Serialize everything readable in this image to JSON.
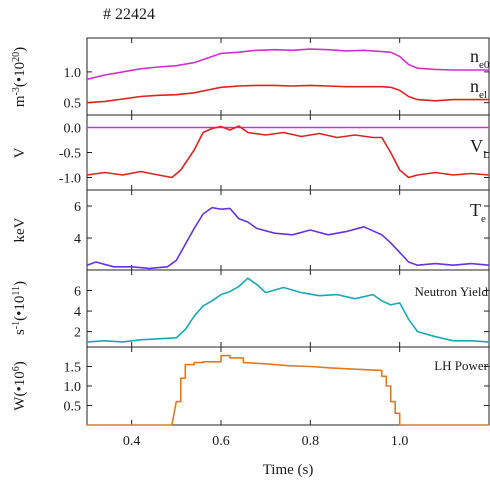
{
  "shot_label": "# 22424",
  "chart_data": {
    "type": "line",
    "xlabel": "Time (s)",
    "xlim": [
      0.3,
      1.2
    ],
    "xticks": [
      0.4,
      0.6,
      0.8,
      1.0
    ],
    "xtick_labels": [
      "0.4",
      "0.6",
      "0.8",
      "1.0"
    ],
    "panels": [
      {
        "id": "density",
        "ylabel": "m-3(•10²⁰)",
        "ylabel_parts": [
          "m",
          "-3",
          "(•10",
          "20",
          ")"
        ],
        "ylim": [
          0.3,
          1.55
        ],
        "yticks": [
          0.5,
          1.0
        ],
        "ytick_labels": [
          "0.5",
          "1.0"
        ],
        "series": [
          {
            "name": "ne0",
            "label_main": "n",
            "label_sub": "e0",
            "color": "#cc33cc",
            "x": [
              0.3,
              0.34,
              0.38,
              0.42,
              0.46,
              0.5,
              0.54,
              0.58,
              0.6,
              0.64,
              0.68,
              0.72,
              0.76,
              0.8,
              0.84,
              0.88,
              0.92,
              0.96,
              0.98,
              1.0,
              1.02,
              1.04,
              1.08,
              1.12,
              1.16,
              1.2
            ],
            "y": [
              0.88,
              0.95,
              1.0,
              1.05,
              1.08,
              1.1,
              1.15,
              1.25,
              1.3,
              1.32,
              1.35,
              1.36,
              1.35,
              1.37,
              1.36,
              1.34,
              1.35,
              1.33,
              1.32,
              1.25,
              1.12,
              1.06,
              1.04,
              1.03,
              1.03,
              1.03
            ]
          },
          {
            "name": "nel",
            "label_main": "n",
            "label_sub": "el",
            "color": "#dd2222",
            "x": [
              0.3,
              0.34,
              0.38,
              0.42,
              0.46,
              0.5,
              0.54,
              0.58,
              0.6,
              0.64,
              0.68,
              0.72,
              0.76,
              0.8,
              0.84,
              0.88,
              0.92,
              0.96,
              0.98,
              1.0,
              1.02,
              1.04,
              1.08,
              1.12,
              1.16,
              1.2
            ],
            "y": [
              0.5,
              0.52,
              0.56,
              0.6,
              0.62,
              0.63,
              0.66,
              0.72,
              0.75,
              0.77,
              0.78,
              0.78,
              0.77,
              0.78,
              0.77,
              0.76,
              0.76,
              0.76,
              0.75,
              0.7,
              0.6,
              0.55,
              0.53,
              0.55,
              0.55,
              0.55
            ]
          }
        ]
      },
      {
        "id": "vloop",
        "ylabel": "V",
        "ylim": [
          -1.25,
          0.25
        ],
        "yticks": [
          -1.0,
          -0.5,
          0.0
        ],
        "ytick_labels": [
          "-1.0",
          "-0.5",
          "0.0"
        ],
        "series": [
          {
            "name": "zero-line",
            "color": "#cc33cc",
            "x": [
              0.3,
              1.2
            ],
            "y": [
              0.0,
              0.0
            ]
          },
          {
            "name": "VLoop",
            "label_main": "V",
            "label_sub": "Loop",
            "color": "#dd2222",
            "x": [
              0.3,
              0.34,
              0.38,
              0.42,
              0.46,
              0.49,
              0.51,
              0.54,
              0.56,
              0.58,
              0.6,
              0.62,
              0.64,
              0.66,
              0.7,
              0.74,
              0.78,
              0.82,
              0.86,
              0.9,
              0.94,
              0.96,
              0.98,
              1.0,
              1.02,
              1.04,
              1.08,
              1.12,
              1.16,
              1.2
            ],
            "y": [
              -0.95,
              -0.9,
              -0.95,
              -0.88,
              -0.95,
              -1.0,
              -0.85,
              -0.45,
              -0.1,
              -0.02,
              0.02,
              -0.05,
              0.03,
              -0.1,
              -0.15,
              -0.1,
              -0.18,
              -0.12,
              -0.2,
              -0.15,
              -0.2,
              -0.2,
              -0.5,
              -0.85,
              -1.0,
              -0.95,
              -0.9,
              -0.95,
              -0.92,
              -0.95
            ]
          }
        ]
      },
      {
        "id": "te",
        "ylabel": "keV",
        "ylim": [
          2.0,
          7.0
        ],
        "yticks": [
          4,
          6
        ],
        "ytick_labels": [
          "4",
          "6"
        ],
        "series": [
          {
            "name": "Te",
            "label_main": "T",
            "label_sub": "e",
            "color": "#6633dd",
            "x": [
              0.3,
              0.32,
              0.36,
              0.4,
              0.44,
              0.48,
              0.5,
              0.52,
              0.54,
              0.56,
              0.58,
              0.6,
              0.62,
              0.64,
              0.66,
              0.68,
              0.72,
              0.76,
              0.8,
              0.84,
              0.88,
              0.92,
              0.96,
              0.98,
              1.0,
              1.02,
              1.04,
              1.08,
              1.12,
              1.16,
              1.2
            ],
            "y": [
              2.3,
              2.5,
              2.2,
              2.2,
              2.1,
              2.2,
              2.6,
              3.6,
              4.6,
              5.5,
              5.9,
              5.8,
              5.85,
              5.2,
              5.0,
              4.6,
              4.3,
              4.2,
              4.5,
              4.2,
              4.4,
              4.7,
              4.2,
              3.7,
              3.1,
              2.5,
              2.3,
              2.4,
              2.3,
              2.4,
              2.3
            ]
          }
        ]
      },
      {
        "id": "neutron",
        "ylabel": "s-1(•10¹¹)",
        "ylabel_parts": [
          "s",
          "-1",
          "(•10",
          "11",
          ")"
        ],
        "ylim": [
          0.5,
          8.0
        ],
        "yticks": [
          2,
          4,
          6
        ],
        "ytick_labels": [
          "2",
          "4",
          "6"
        ],
        "series": [
          {
            "name": "Neutron Yield",
            "label_main": "Neutron Yield",
            "color": "#1aa7b5",
            "x": [
              0.3,
              0.34,
              0.38,
              0.42,
              0.46,
              0.5,
              0.52,
              0.54,
              0.56,
              0.58,
              0.6,
              0.62,
              0.64,
              0.66,
              0.68,
              0.7,
              0.74,
              0.78,
              0.82,
              0.86,
              0.9,
              0.94,
              0.96,
              0.98,
              1.0,
              1.02,
              1.04,
              1.08,
              1.12,
              1.16,
              1.2
            ],
            "y": [
              1.0,
              1.1,
              1.0,
              1.2,
              1.3,
              1.4,
              2.2,
              3.5,
              4.5,
              5.0,
              5.6,
              5.9,
              6.4,
              7.2,
              6.6,
              5.8,
              6.3,
              5.8,
              5.5,
              5.6,
              5.2,
              5.6,
              5.0,
              4.6,
              4.8,
              3.2,
              2.0,
              1.5,
              1.1,
              1.1,
              1.0
            ]
          }
        ]
      },
      {
        "id": "lh",
        "ylabel": "W(•10⁶)",
        "ylabel_parts": [
          "W(•10",
          "6",
          ")"
        ],
        "ylim": [
          0.0,
          2.0
        ],
        "yticks": [
          0.5,
          1.0,
          1.5
        ],
        "ytick_labels": [
          "0.5",
          "1.0",
          "1.5"
        ],
        "series": [
          {
            "name": "LH Power",
            "label_main": "LH Power",
            "color": "#e07a1f",
            "x": [
              0.3,
              0.49,
              0.5,
              0.51,
              0.51,
              0.52,
              0.52,
              0.54,
              0.54,
              0.56,
              0.56,
              0.6,
              0.6,
              0.62,
              0.62,
              0.65,
              0.65,
              0.7,
              0.75,
              0.8,
              0.85,
              0.9,
              0.96,
              0.96,
              0.97,
              0.97,
              0.98,
              0.98,
              0.99,
              0.99,
              1.0,
              1.0,
              1.2
            ],
            "y": [
              0.0,
              0.0,
              0.6,
              0.6,
              1.2,
              1.2,
              1.55,
              1.55,
              1.6,
              1.6,
              1.62,
              1.62,
              1.78,
              1.78,
              1.72,
              1.72,
              1.6,
              1.57,
              1.52,
              1.5,
              1.46,
              1.43,
              1.4,
              1.25,
              1.25,
              1.0,
              1.0,
              0.6,
              0.6,
              0.3,
              0.3,
              0.0,
              0.0
            ]
          }
        ]
      }
    ]
  }
}
